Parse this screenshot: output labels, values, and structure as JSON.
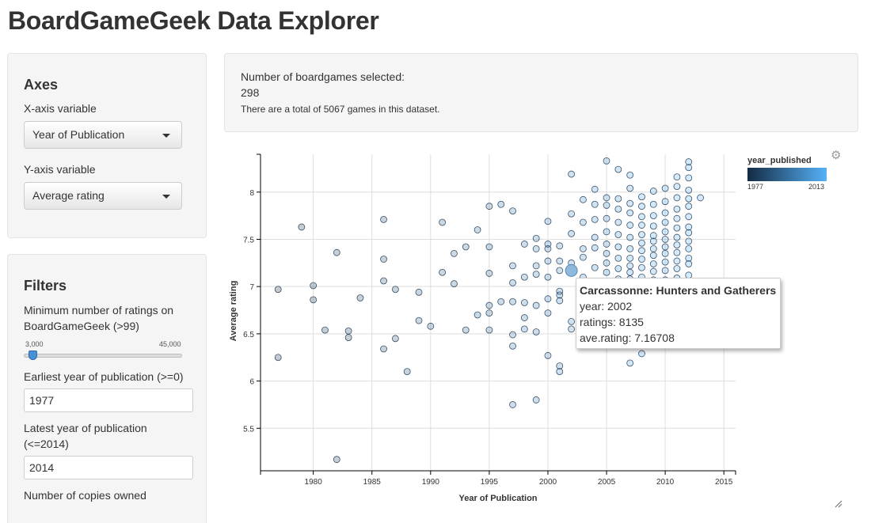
{
  "page": {
    "title": "BoardGameGeek Data Explorer"
  },
  "axes_panel": {
    "heading": "Axes",
    "x_label": "X-axis variable",
    "x_value": "Year of Publication",
    "y_label": "Y-axis variable",
    "y_value": "Average rating"
  },
  "filters_panel": {
    "heading": "Filters",
    "min_ratings_label": "Minimum number of ratings on BoardGameGeek (>99)",
    "slider_min_label": "3,000",
    "slider_max_label": "45,000",
    "slider_value": 3000,
    "earliest_label": "Earliest year of publication (>=0)",
    "earliest_value": "1977",
    "latest_label": "Latest year of publication (<=2014)",
    "latest_value": "2014",
    "copies_label": "Number of copies owned"
  },
  "info": {
    "count_label": "Number of boardgames selected:",
    "count_value": "298",
    "total_text": "There are a total of 5067 games in this dataset."
  },
  "tooltip": {
    "title": "Carcassonne: Hunters and Gatherers",
    "year": "year: 2002",
    "ratings": "ratings: 8135",
    "rating": "ave.rating: 7.16708"
  },
  "legend": {
    "title": "year_published",
    "min_label": "1977",
    "max_label": "2013",
    "colors": [
      "#132b43",
      "#56b1f7"
    ]
  },
  "icons": {
    "gear": "gear-icon",
    "resize": "resize-handle-icon"
  },
  "chart_data": {
    "type": "scatter",
    "xlabel": "Year of Publication",
    "ylabel": "Average rating",
    "xlim": [
      1975.5,
      2016
    ],
    "ylim": [
      5.05,
      8.4
    ],
    "x_ticks": [
      1980,
      1985,
      1990,
      1995,
      2000,
      2005,
      2010,
      2015
    ],
    "y_ticks": [
      5.5,
      6,
      6.5,
      7,
      7.5,
      8
    ],
    "grid": true,
    "highlight": {
      "x": 2002,
      "y": 7.17
    },
    "points": [
      [
        1977,
        6.97
      ],
      [
        1977,
        6.25
      ],
      [
        1979,
        7.63
      ],
      [
        1980,
        7.01
      ],
      [
        1980,
        6.86
      ],
      [
        1981,
        6.54
      ],
      [
        1982,
        7.36
      ],
      [
        1982,
        5.17
      ],
      [
        1983,
        6.53
      ],
      [
        1983,
        6.46
      ],
      [
        1984,
        6.88
      ],
      [
        1986,
        7.71
      ],
      [
        1986,
        7.29
      ],
      [
        1986,
        7.06
      ],
      [
        1986,
        6.34
      ],
      [
        1987,
        6.97
      ],
      [
        1987,
        6.45
      ],
      [
        1988,
        6.1
      ],
      [
        1989,
        6.94
      ],
      [
        1989,
        6.64
      ],
      [
        1990,
        6.58
      ],
      [
        1991,
        7.68
      ],
      [
        1991,
        7.15
      ],
      [
        1992,
        7.35
      ],
      [
        1992,
        7.03
      ],
      [
        1993,
        7.42
      ],
      [
        1993,
        6.54
      ],
      [
        1994,
        7.6
      ],
      [
        1994,
        6.7
      ],
      [
        1995,
        7.85
      ],
      [
        1995,
        7.42
      ],
      [
        1995,
        7.14
      ],
      [
        1995,
        6.8
      ],
      [
        1995,
        6.72
      ],
      [
        1995,
        6.54
      ],
      [
        1996,
        7.87
      ],
      [
        1996,
        6.84
      ],
      [
        1997,
        7.8
      ],
      [
        1997,
        7.22
      ],
      [
        1997,
        7.04
      ],
      [
        1997,
        6.84
      ],
      [
        1997,
        6.49
      ],
      [
        1997,
        6.37
      ],
      [
        1997,
        5.75
      ],
      [
        1998,
        7.45
      ],
      [
        1998,
        7.1
      ],
      [
        1998,
        6.83
      ],
      [
        1998,
        6.67
      ],
      [
        1998,
        6.55
      ],
      [
        1999,
        7.51
      ],
      [
        1999,
        7.4
      ],
      [
        1999,
        7.22
      ],
      [
        1999,
        7.13
      ],
      [
        1999,
        6.8
      ],
      [
        1999,
        6.52
      ],
      [
        1999,
        5.8
      ],
      [
        2000,
        7.69
      ],
      [
        2000,
        7.45
      ],
      [
        2000,
        7.4
      ],
      [
        2000,
        7.27
      ],
      [
        2000,
        7.1
      ],
      [
        2000,
        6.87
      ],
      [
        2000,
        6.72
      ],
      [
        2000,
        6.27
      ],
      [
        2001,
        7.43
      ],
      [
        2001,
        7.27
      ],
      [
        2001,
        7.17
      ],
      [
        2001,
        6.95
      ],
      [
        2001,
        6.91
      ],
      [
        2001,
        6.85
      ],
      [
        2001,
        6.16
      ],
      [
        2001,
        6.1
      ],
      [
        2002,
        8.19
      ],
      [
        2002,
        7.77
      ],
      [
        2002,
        7.56
      ],
      [
        2002,
        7.25
      ],
      [
        2002,
        6.63
      ],
      [
        2002,
        6.55
      ],
      [
        2003,
        7.92
      ],
      [
        2003,
        7.68
      ],
      [
        2003,
        7.4
      ],
      [
        2003,
        7.31
      ],
      [
        2003,
        7.1
      ],
      [
        2003,
        6.9
      ],
      [
        2003,
        6.65
      ],
      [
        2004,
        8.03
      ],
      [
        2004,
        7.87
      ],
      [
        2004,
        7.71
      ],
      [
        2004,
        7.52
      ],
      [
        2004,
        7.41
      ],
      [
        2004,
        7.2
      ],
      [
        2004,
        7.05
      ],
      [
        2005,
        8.33
      ],
      [
        2005,
        7.94
      ],
      [
        2005,
        7.86
      ],
      [
        2005,
        7.72
      ],
      [
        2005,
        7.58
      ],
      [
        2005,
        7.45
      ],
      [
        2005,
        7.35
      ],
      [
        2005,
        7.25
      ],
      [
        2005,
        7.15
      ],
      [
        2005,
        7.02
      ],
      [
        2005,
        6.92
      ],
      [
        2005,
        6.8
      ],
      [
        2006,
        8.24
      ],
      [
        2006,
        7.93
      ],
      [
        2006,
        7.82
      ],
      [
        2006,
        7.68
      ],
      [
        2006,
        7.55
      ],
      [
        2006,
        7.42
      ],
      [
        2006,
        7.3
      ],
      [
        2006,
        7.19
      ],
      [
        2006,
        7.08
      ],
      [
        2006,
        6.95
      ],
      [
        2006,
        6.84
      ],
      [
        2007,
        8.18
      ],
      [
        2007,
        8.04
      ],
      [
        2007,
        7.88
      ],
      [
        2007,
        7.78
      ],
      [
        2007,
        7.65
      ],
      [
        2007,
        7.52
      ],
      [
        2007,
        7.4
      ],
      [
        2007,
        7.3
      ],
      [
        2007,
        7.22
      ],
      [
        2007,
        7.15
      ],
      [
        2007,
        7.08
      ],
      [
        2007,
        6.98
      ],
      [
        2007,
        6.88
      ],
      [
        2007,
        6.75
      ],
      [
        2007,
        6.19
      ],
      [
        2008,
        7.95
      ],
      [
        2008,
        7.85
      ],
      [
        2008,
        7.74
      ],
      [
        2008,
        7.65
      ],
      [
        2008,
        7.55
      ],
      [
        2008,
        7.46
      ],
      [
        2008,
        7.38
      ],
      [
        2008,
        7.29
      ],
      [
        2008,
        7.2
      ],
      [
        2008,
        7.1
      ],
      [
        2008,
        7.0
      ],
      [
        2008,
        6.9
      ],
      [
        2008,
        6.78
      ],
      [
        2008,
        6.29
      ],
      [
        2009,
        8.01
      ],
      [
        2009,
        7.87
      ],
      [
        2009,
        7.75
      ],
      [
        2009,
        7.64
      ],
      [
        2009,
        7.54
      ],
      [
        2009,
        7.48
      ],
      [
        2009,
        7.4
      ],
      [
        2009,
        7.33
      ],
      [
        2009,
        7.24
      ],
      [
        2009,
        7.16
      ],
      [
        2009,
        7.07
      ],
      [
        2009,
        6.97
      ],
      [
        2009,
        6.88
      ],
      [
        2009,
        6.74
      ],
      [
        2009,
        6.64
      ],
      [
        2010,
        8.04
      ],
      [
        2010,
        7.9
      ],
      [
        2010,
        7.78
      ],
      [
        2010,
        7.68
      ],
      [
        2010,
        7.58
      ],
      [
        2010,
        7.5
      ],
      [
        2010,
        7.42
      ],
      [
        2010,
        7.35
      ],
      [
        2010,
        7.26
      ],
      [
        2010,
        7.17
      ],
      [
        2010,
        7.07
      ],
      [
        2010,
        6.97
      ],
      [
        2011,
        8.16
      ],
      [
        2011,
        8.06
      ],
      [
        2011,
        7.94
      ],
      [
        2011,
        7.82
      ],
      [
        2011,
        7.72
      ],
      [
        2011,
        7.62
      ],
      [
        2011,
        7.52
      ],
      [
        2011,
        7.44
      ],
      [
        2011,
        7.36
      ],
      [
        2011,
        7.27
      ],
      [
        2011,
        7.19
      ],
      [
        2011,
        7.09
      ],
      [
        2011,
        7.0
      ],
      [
        2011,
        6.9
      ],
      [
        2012,
        8.32
      ],
      [
        2012,
        8.26
      ],
      [
        2012,
        8.15
      ],
      [
        2012,
        8.02
      ],
      [
        2012,
        7.93
      ],
      [
        2012,
        7.85
      ],
      [
        2012,
        7.74
      ],
      [
        2012,
        7.63
      ],
      [
        2012,
        7.57
      ],
      [
        2012,
        7.48
      ],
      [
        2012,
        7.4
      ],
      [
        2012,
        7.3
      ],
      [
        2012,
        7.24
      ],
      [
        2012,
        7.12
      ],
      [
        2012,
        7.04
      ],
      [
        2013,
        7.94
      ]
    ]
  }
}
